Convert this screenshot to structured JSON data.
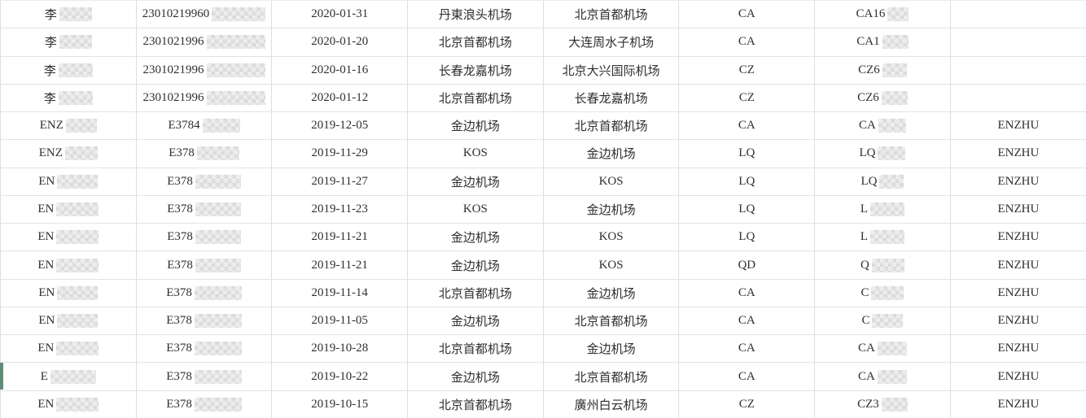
{
  "accent": {
    "selection_green": "#5f8f74",
    "gridline": "#e3e3e3"
  },
  "selection": {
    "selected_row_index": 13
  },
  "table": {
    "rows": [
      {
        "name_prefix": "李",
        "name_mosaic_w": 40,
        "id_prefix": "23010219960",
        "id_mosaic_w": 66,
        "date": "2020-01-31",
        "from": "丹東浪头机场",
        "to": "北京首都机场",
        "airline": "CA",
        "flight_prefix": "CA16",
        "flight_mosaic_w": 26,
        "latin": ""
      },
      {
        "name_prefix": "李",
        "name_mosaic_w": 40,
        "id_prefix": "2301021996",
        "id_mosaic_w": 72,
        "date": "2020-01-20",
        "from": "北京首都机场",
        "to": "大连周水子机场",
        "airline": "CA",
        "flight_prefix": "CA1",
        "flight_mosaic_w": 32,
        "latin": ""
      },
      {
        "name_prefix": "李",
        "name_mosaic_w": 42,
        "id_prefix": "2301021996",
        "id_mosaic_w": 72,
        "date": "2020-01-16",
        "from": "长春龙嘉机场",
        "to": "北京大兴国际机场",
        "airline": "CZ",
        "flight_prefix": "CZ6",
        "flight_mosaic_w": 30,
        "latin": ""
      },
      {
        "name_prefix": "李",
        "name_mosaic_w": 42,
        "id_prefix": "2301021996",
        "id_mosaic_w": 72,
        "date": "2020-01-12",
        "from": "北京首都机场",
        "to": "长春龙嘉机场",
        "airline": "CZ",
        "flight_prefix": "CZ6",
        "flight_mosaic_w": 32,
        "latin": ""
      },
      {
        "name_prefix": "ENZ",
        "name_mosaic_w": 38,
        "id_prefix": "E3784",
        "id_mosaic_w": 46,
        "date": "2019-12-05",
        "from": "金边机场",
        "to": "北京首都机场",
        "airline": "CA",
        "flight_prefix": "CA",
        "flight_mosaic_w": 34,
        "latin": "ENZHU"
      },
      {
        "name_prefix": "ENZ",
        "name_mosaic_w": 40,
        "id_prefix": "E378",
        "id_mosaic_w": 52,
        "date": "2019-11-29",
        "from": "KOS",
        "to": "金边机场",
        "airline": "LQ",
        "flight_prefix": "LQ",
        "flight_mosaic_w": 34,
        "latin": "ENZHU"
      },
      {
        "name_prefix": "EN",
        "name_mosaic_w": 50,
        "id_prefix": "E378",
        "id_mosaic_w": 56,
        "date": "2019-11-27",
        "from": "金边机场",
        "to": "KOS",
        "airline": "LQ",
        "flight_prefix": "LQ",
        "flight_mosaic_w": 30,
        "latin": "ENZHU"
      },
      {
        "name_prefix": "EN",
        "name_mosaic_w": 52,
        "id_prefix": "E378",
        "id_mosaic_w": 56,
        "date": "2019-11-23",
        "from": "KOS",
        "to": "金边机场",
        "airline": "LQ",
        "flight_prefix": "L",
        "flight_mosaic_w": 42,
        "latin": "ENZHU"
      },
      {
        "name_prefix": "EN",
        "name_mosaic_w": 52,
        "id_prefix": "E378",
        "id_mosaic_w": 56,
        "date": "2019-11-21",
        "from": "金边机场",
        "to": "KOS",
        "airline": "LQ",
        "flight_prefix": "L",
        "flight_mosaic_w": 42,
        "latin": "ENZHU"
      },
      {
        "name_prefix": "EN",
        "name_mosaic_w": 52,
        "id_prefix": "E378",
        "id_mosaic_w": 56,
        "date": "2019-11-21",
        "from": "金边机场",
        "to": "KOS",
        "airline": "QD",
        "flight_prefix": "Q",
        "flight_mosaic_w": 40,
        "latin": "ENZHU"
      },
      {
        "name_prefix": "EN",
        "name_mosaic_w": 50,
        "id_prefix": "E378",
        "id_mosaic_w": 58,
        "date": "2019-11-14",
        "from": "北京首都机场",
        "to": "金边机场",
        "airline": "CA",
        "flight_prefix": "C",
        "flight_mosaic_w": 40,
        "latin": "ENZHU"
      },
      {
        "name_prefix": "EN",
        "name_mosaic_w": 50,
        "id_prefix": "E378",
        "id_mosaic_w": 58,
        "date": "2019-11-05",
        "from": "金边机场",
        "to": "北京首都机场",
        "airline": "CA",
        "flight_prefix": "C",
        "flight_mosaic_w": 38,
        "latin": "ENZHU"
      },
      {
        "name_prefix": "EN",
        "name_mosaic_w": 52,
        "id_prefix": "E378",
        "id_mosaic_w": 58,
        "date": "2019-10-28",
        "from": "北京首都机场",
        "to": "金边机场",
        "airline": "CA",
        "flight_prefix": "CA",
        "flight_mosaic_w": 36,
        "latin": "ENZHU"
      },
      {
        "name_prefix": "E",
        "name_mosaic_w": 56,
        "id_prefix": "E378",
        "id_mosaic_w": 58,
        "date": "2019-10-22",
        "from": "金边机场",
        "to": "北京首都机场",
        "airline": "CA",
        "flight_prefix": "CA",
        "flight_mosaic_w": 36,
        "latin": "ENZHU"
      },
      {
        "name_prefix": "EN",
        "name_mosaic_w": 52,
        "id_prefix": "E378",
        "id_mosaic_w": 58,
        "date": "2019-10-15",
        "from": "北京首都机场",
        "to": "廣州白云机场",
        "airline": "CZ",
        "flight_prefix": "CZ3",
        "flight_mosaic_w": 32,
        "latin": "ENZHU"
      }
    ]
  }
}
